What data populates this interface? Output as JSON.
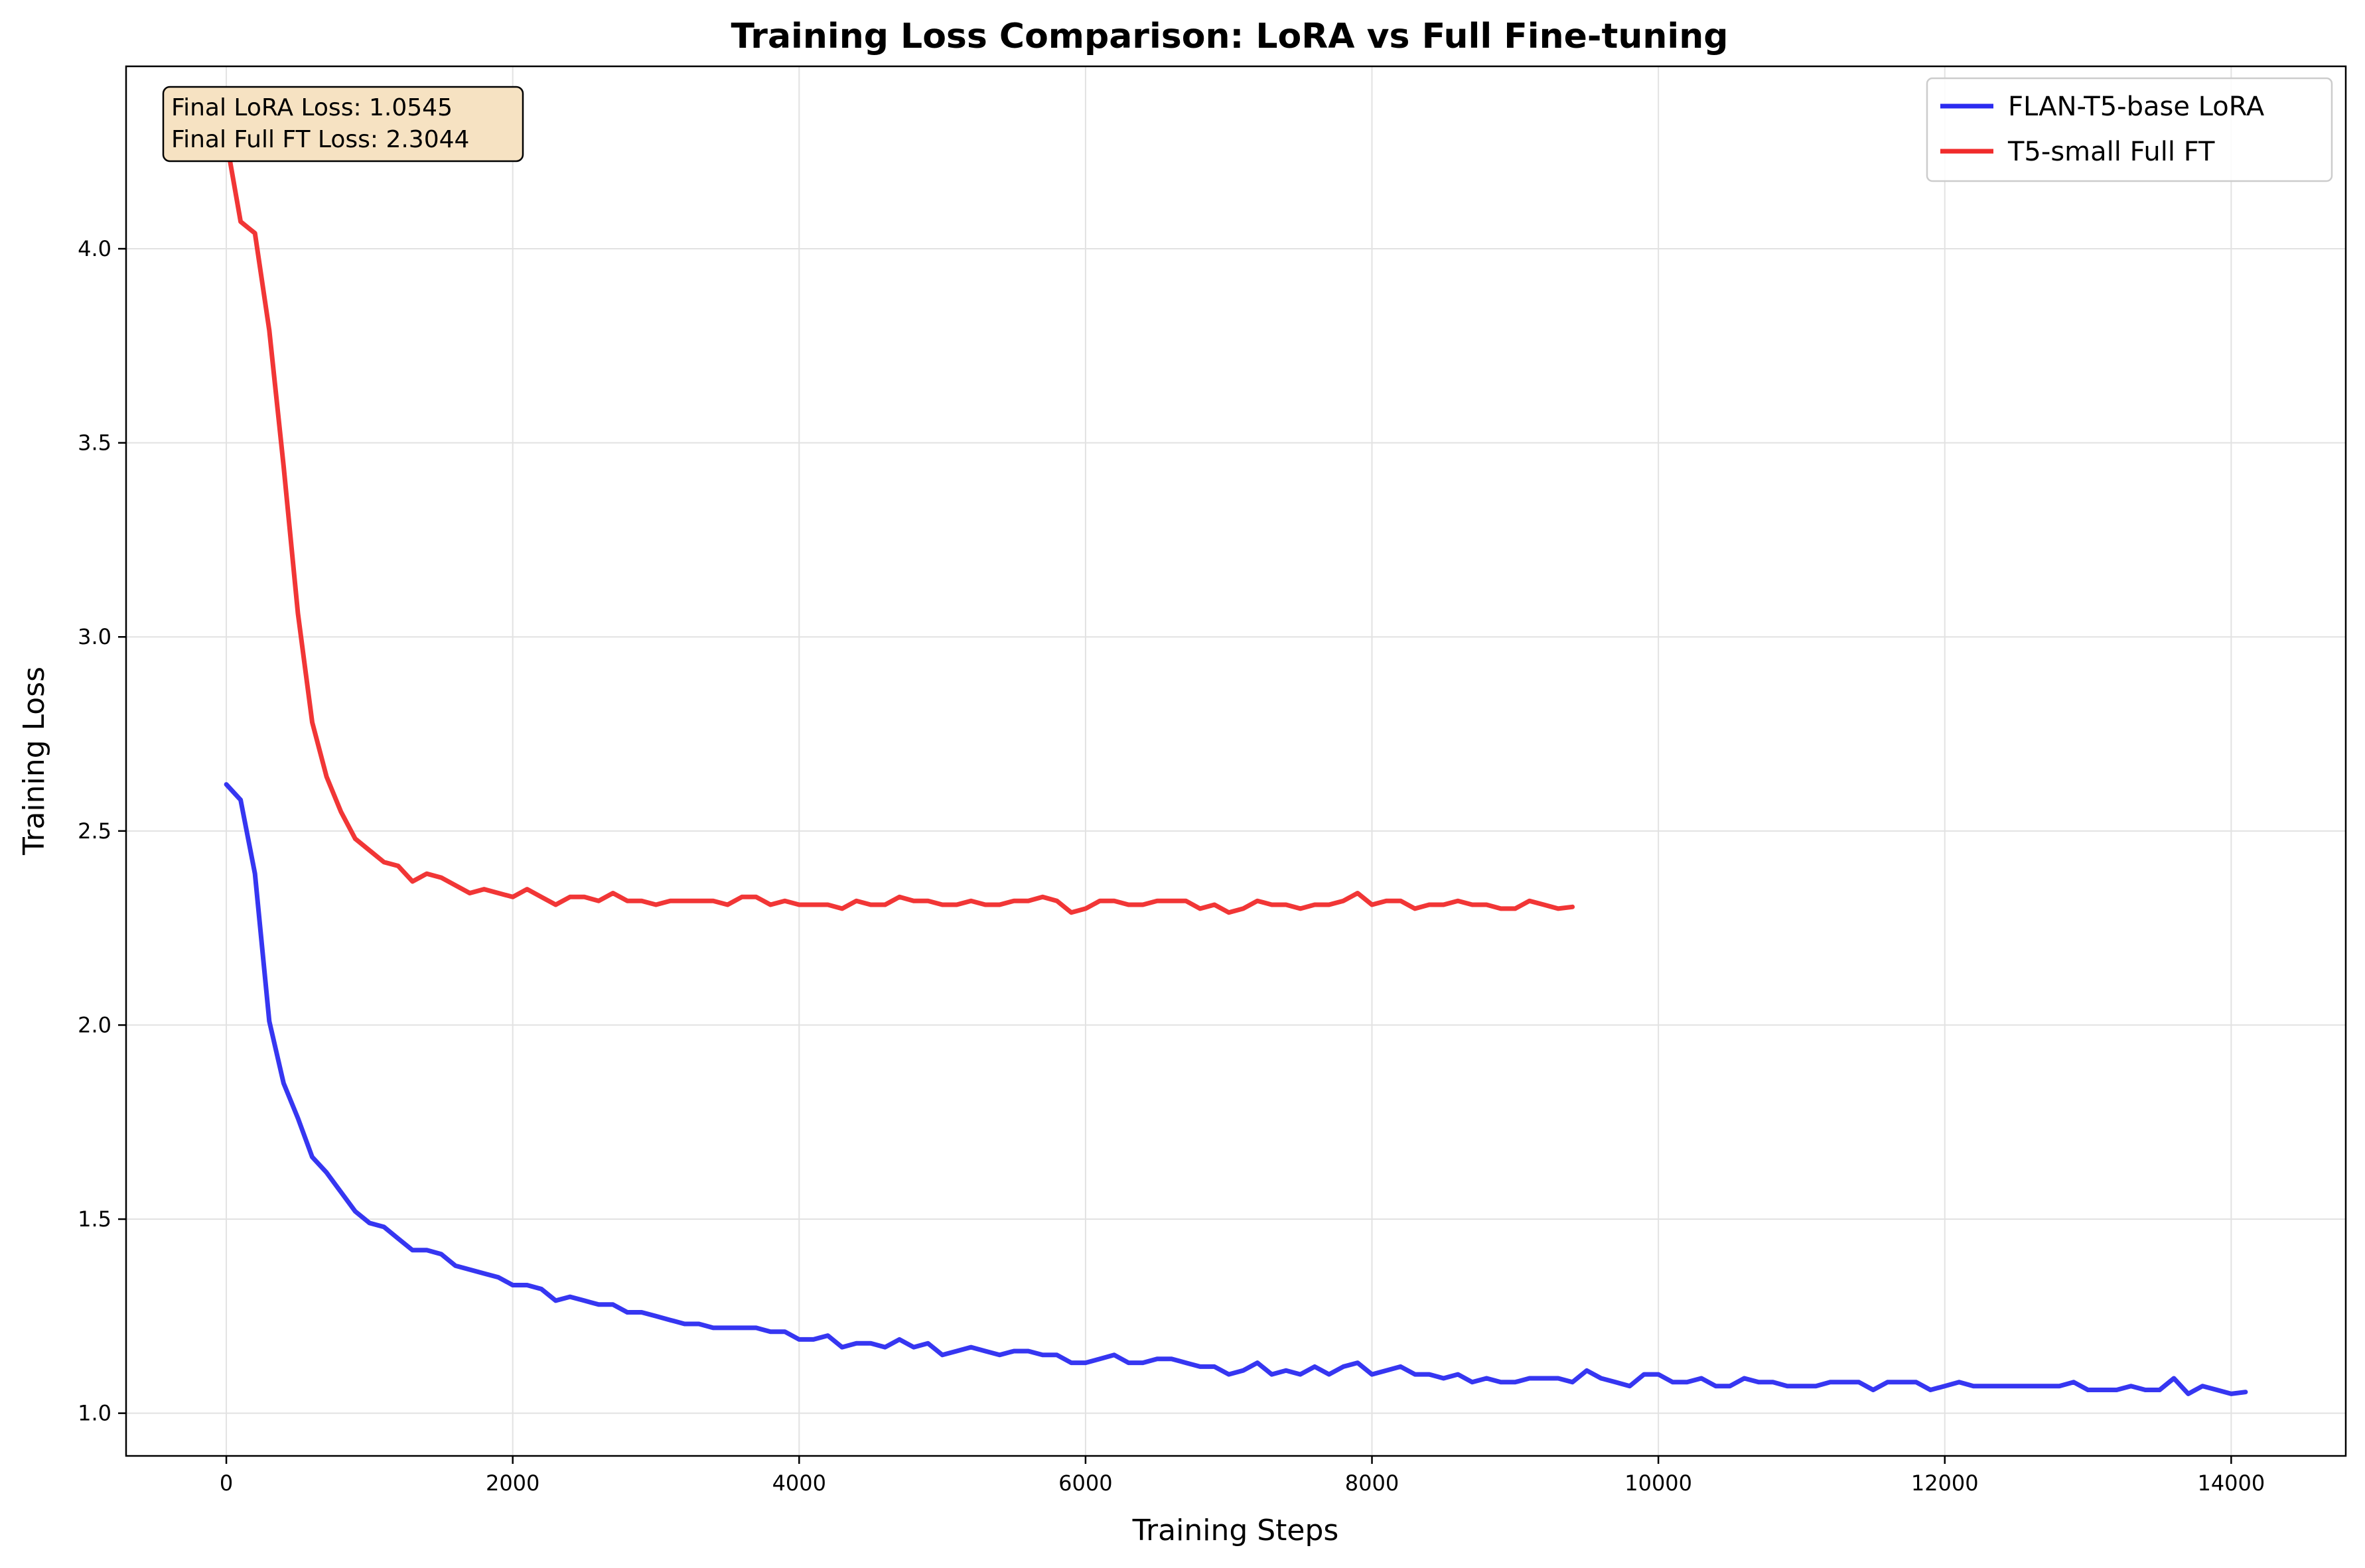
{
  "chart_data": {
    "type": "line",
    "title": "Training Loss Comparison: LoRA vs Full Fine-tuning",
    "xlabel": "Training Steps",
    "ylabel": "Training Loss",
    "xlim": [
      -700,
      14800
    ],
    "ylim": [
      0.89,
      4.47
    ],
    "xticks": [
      0,
      2000,
      4000,
      6000,
      8000,
      10000,
      12000,
      14000
    ],
    "yticks": [
      1.0,
      1.5,
      2.0,
      2.5,
      3.0,
      3.5,
      4.0
    ],
    "xtick_labels": [
      "0",
      "2000",
      "4000",
      "6000",
      "8000",
      "10000",
      "12000",
      "14000"
    ],
    "ytick_labels": [
      "1.0",
      "1.5",
      "2.0",
      "2.5",
      "3.0",
      "3.5",
      "4.0"
    ],
    "grid": true,
    "legend_position": "top-right",
    "annotation": [
      "Final LoRA Loss: 1.0545",
      "Final Full FT Loss: 2.3044"
    ],
    "series": [
      {
        "name": "FLAN-T5-base LoRA",
        "color": "#2b2bf0",
        "x": [
          0,
          100,
          200,
          300,
          400,
          500,
          600,
          700,
          800,
          900,
          1000,
          1100,
          1200,
          1300,
          1400,
          1500,
          1600,
          1700,
          1800,
          1900,
          2000,
          2100,
          2200,
          2300,
          2400,
          2500,
          2600,
          2700,
          2800,
          2900,
          3000,
          3100,
          3200,
          3300,
          3400,
          3500,
          3600,
          3700,
          3800,
          3900,
          4000,
          4100,
          4200,
          4300,
          4400,
          4500,
          4600,
          4700,
          4800,
          4900,
          5000,
          5100,
          5200,
          5300,
          5400,
          5500,
          5600,
          5700,
          5800,
          5900,
          6000,
          6100,
          6200,
          6300,
          6400,
          6500,
          6600,
          6700,
          6800,
          6900,
          7000,
          7100,
          7200,
          7300,
          7400,
          7500,
          7600,
          7700,
          7800,
          7900,
          8000,
          8100,
          8200,
          8300,
          8400,
          8500,
          8600,
          8700,
          8800,
          8900,
          9000,
          9100,
          9200,
          9300,
          9400,
          9500,
          9600,
          9700,
          9800,
          9900,
          10000,
          10100,
          10200,
          10300,
          10400,
          10500,
          10600,
          10700,
          10800,
          10900,
          11000,
          11100,
          11200,
          11300,
          11400,
          11500,
          11600,
          11700,
          11800,
          11900,
          12000,
          12100,
          12200,
          12300,
          12400,
          12500,
          12600,
          12700,
          12800,
          12900,
          13000,
          13100,
          13200,
          13300,
          13400,
          13500,
          13600,
          13700,
          13800,
          13900,
          14000,
          14100
        ],
        "y": [
          2.62,
          2.58,
          2.39,
          2.01,
          1.85,
          1.76,
          1.66,
          1.62,
          1.57,
          1.52,
          1.49,
          1.48,
          1.45,
          1.42,
          1.42,
          1.41,
          1.38,
          1.37,
          1.36,
          1.35,
          1.33,
          1.33,
          1.32,
          1.29,
          1.3,
          1.29,
          1.28,
          1.28,
          1.26,
          1.26,
          1.25,
          1.24,
          1.23,
          1.23,
          1.22,
          1.22,
          1.22,
          1.22,
          1.21,
          1.21,
          1.19,
          1.19,
          1.2,
          1.17,
          1.18,
          1.18,
          1.17,
          1.19,
          1.17,
          1.18,
          1.15,
          1.16,
          1.17,
          1.16,
          1.15,
          1.16,
          1.16,
          1.15,
          1.15,
          1.13,
          1.13,
          1.14,
          1.15,
          1.13,
          1.13,
          1.14,
          1.14,
          1.13,
          1.12,
          1.12,
          1.1,
          1.11,
          1.13,
          1.1,
          1.11,
          1.1,
          1.12,
          1.1,
          1.12,
          1.13,
          1.1,
          1.11,
          1.12,
          1.1,
          1.1,
          1.09,
          1.1,
          1.08,
          1.09,
          1.08,
          1.08,
          1.09,
          1.09,
          1.09,
          1.08,
          1.11,
          1.09,
          1.08,
          1.07,
          1.1,
          1.1,
          1.08,
          1.08,
          1.09,
          1.07,
          1.07,
          1.09,
          1.08,
          1.08,
          1.07,
          1.07,
          1.07,
          1.08,
          1.08,
          1.08,
          1.06,
          1.08,
          1.08,
          1.08,
          1.06,
          1.07,
          1.08,
          1.07,
          1.07,
          1.07,
          1.07,
          1.07,
          1.07,
          1.07,
          1.08,
          1.06,
          1.06,
          1.06,
          1.07,
          1.06,
          1.06,
          1.09,
          1.05,
          1.07,
          1.06,
          1.05,
          1.0545
        ]
      },
      {
        "name": "T5-small Full FT",
        "color": "#f02b2b",
        "x": [
          0,
          100,
          200,
          300,
          400,
          500,
          600,
          700,
          800,
          900,
          1000,
          1100,
          1200,
          1300,
          1400,
          1500,
          1600,
          1700,
          1800,
          1900,
          2000,
          2100,
          2200,
          2300,
          2400,
          2500,
          2600,
          2700,
          2800,
          2900,
          3000,
          3100,
          3200,
          3300,
          3400,
          3500,
          3600,
          3700,
          3800,
          3900,
          4000,
          4100,
          4200,
          4300,
          4400,
          4500,
          4600,
          4700,
          4800,
          4900,
          5000,
          5100,
          5200,
          5300,
          5400,
          5500,
          5600,
          5700,
          5800,
          5900,
          6000,
          6100,
          6200,
          6300,
          6400,
          6500,
          6600,
          6700,
          6800,
          6900,
          7000,
          7100,
          7200,
          7300,
          7400,
          7500,
          7600,
          7700,
          7800,
          7900,
          8000,
          8100,
          8200,
          8300,
          8400,
          8500,
          8600,
          8700,
          8800,
          8900,
          9000,
          9100,
          9200,
          9300,
          9400
        ],
        "y": [
          4.28,
          4.07,
          4.04,
          3.79,
          3.44,
          3.06,
          2.78,
          2.64,
          2.55,
          2.48,
          2.45,
          2.42,
          2.41,
          2.37,
          2.39,
          2.38,
          2.36,
          2.34,
          2.35,
          2.34,
          2.33,
          2.35,
          2.33,
          2.31,
          2.33,
          2.33,
          2.32,
          2.34,
          2.32,
          2.32,
          2.31,
          2.32,
          2.32,
          2.32,
          2.32,
          2.31,
          2.33,
          2.33,
          2.31,
          2.32,
          2.31,
          2.31,
          2.31,
          2.3,
          2.32,
          2.31,
          2.31,
          2.33,
          2.32,
          2.32,
          2.31,
          2.31,
          2.32,
          2.31,
          2.31,
          2.32,
          2.32,
          2.33,
          2.32,
          2.29,
          2.3,
          2.32,
          2.32,
          2.31,
          2.31,
          2.32,
          2.32,
          2.32,
          2.3,
          2.31,
          2.29,
          2.3,
          2.32,
          2.31,
          2.31,
          2.3,
          2.31,
          2.31,
          2.32,
          2.34,
          2.31,
          2.32,
          2.32,
          2.3,
          2.31,
          2.31,
          2.32,
          2.31,
          2.31,
          2.3,
          2.3,
          2.32,
          2.31,
          2.3,
          2.3044
        ]
      }
    ]
  }
}
